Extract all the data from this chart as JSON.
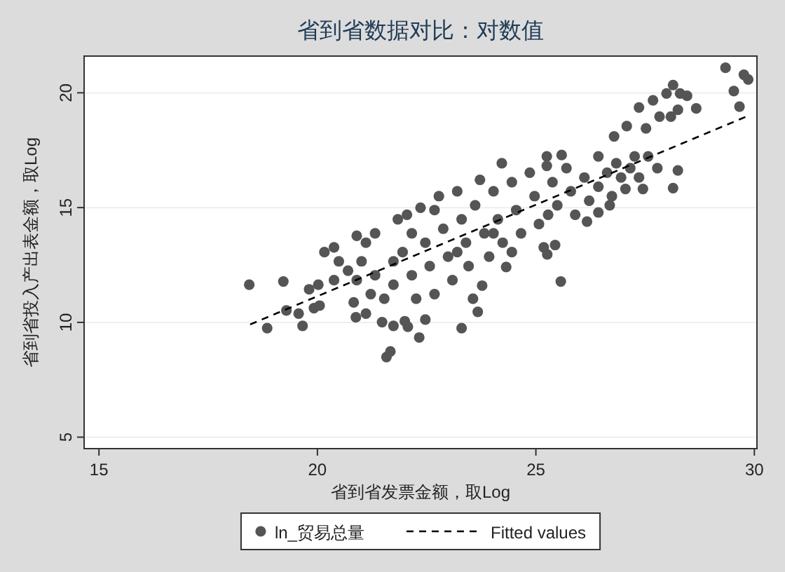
{
  "chart_data": {
    "type": "scatter",
    "title": "省到省数据对比：对数值",
    "xlabel": "省到省发票金额，取Log",
    "ylabel": "省到省投入产出表金额，取Log",
    "xlim": [
      14.66,
      30.06
    ],
    "ylim": [
      4.5,
      21.6
    ],
    "xticks": [
      15,
      20,
      25,
      30
    ],
    "yticks": [
      5,
      10,
      15,
      20
    ],
    "grid": "y",
    "legend": "bottom",
    "series": [
      {
        "name": "ln_贸易总量",
        "type": "scatter",
        "marker": "circle",
        "color": "#555555",
        "x": [
          18.44,
          19.22,
          18.85,
          19.66,
          19.29,
          19.57,
          19.92,
          20.05,
          19.81,
          20.02,
          20.16,
          20.38,
          20.83,
          20.88,
          21.11,
          21.58,
          21.67,
          21.48,
          21.74,
          22.0,
          22.07,
          22.33,
          22.47,
          23.3,
          23.67,
          23.56,
          23.77,
          24.32,
          25.57,
          24.22,
          25.25,
          25.25,
          25.59,
          26.43,
          26.79,
          27.08,
          27.26,
          27.36,
          27.52,
          27.57,
          27.68,
          27.83,
          27.99,
          28.14,
          28.3,
          28.46,
          28.25,
          28.09,
          28.67,
          27.78,
          28.25,
          28.14,
          27.45,
          27.05,
          29.34,
          29.76,
          29.86,
          29.53,
          29.66,
          26.69,
          26.17,
          26.43,
          25.44,
          25.26,
          20.49,
          20.7,
          20.9,
          21.11,
          21.32,
          21.01,
          21.32,
          21.22,
          21.53,
          21.74,
          21.84,
          21.95,
          22.05,
          22.16,
          22.26,
          22.36,
          22.47,
          22.57,
          22.68,
          22.78,
          22.88,
          22.99,
          23.09,
          23.2,
          23.3,
          23.4,
          23.46,
          23.72,
          23.61,
          23.82,
          23.93,
          24.03,
          24.13,
          24.24,
          24.45,
          24.55,
          24.66,
          24.86,
          24.97,
          25.07,
          25.18,
          25.38,
          25.49,
          25.7,
          25.8,
          25.9,
          26.11,
          26.22,
          26.43,
          26.63,
          26.74,
          26.84,
          26.95,
          27.16,
          27.36,
          21.74,
          20.9,
          20.38,
          22.16,
          22.68,
          23.2,
          24.03,
          25.28,
          24.45
        ],
        "values": [
          11.64,
          11.78,
          9.75,
          9.85,
          10.52,
          10.38,
          10.62,
          10.73,
          11.44,
          11.64,
          13.06,
          13.27,
          10.87,
          10.22,
          10.38,
          8.49,
          8.73,
          10.01,
          9.85,
          10.05,
          9.81,
          9.34,
          10.12,
          9.75,
          10.46,
          11.03,
          11.6,
          12.41,
          11.78,
          16.93,
          17.23,
          16.82,
          17.29,
          17.23,
          18.1,
          18.55,
          17.23,
          19.36,
          18.45,
          17.23,
          19.67,
          18.96,
          19.97,
          20.34,
          19.97,
          19.87,
          19.26,
          18.96,
          19.32,
          16.72,
          16.62,
          15.85,
          15.81,
          15.81,
          21.09,
          20.79,
          20.58,
          20.08,
          19.4,
          15.1,
          14.39,
          14.79,
          13.37,
          12.96,
          12.66,
          12.25,
          13.77,
          13.47,
          13.88,
          12.66,
          12.05,
          11.23,
          11.03,
          11.64,
          14.49,
          13.06,
          14.69,
          12.05,
          11.03,
          14.99,
          13.47,
          12.45,
          11.23,
          15.5,
          14.08,
          12.86,
          11.84,
          15.71,
          14.49,
          13.47,
          12.45,
          16.21,
          15.1,
          13.88,
          12.86,
          15.71,
          14.49,
          13.47,
          16.11,
          14.89,
          13.88,
          16.52,
          15.5,
          14.28,
          13.27,
          16.11,
          15.1,
          16.72,
          15.71,
          14.69,
          16.31,
          15.3,
          15.91,
          16.52,
          15.5,
          16.93,
          16.31,
          16.72,
          16.31,
          12.66,
          11.84,
          11.84,
          13.88,
          14.89,
          13.06,
          13.88,
          14.69,
          13.06
        ]
      },
      {
        "name": "Fitted values",
        "type": "line",
        "line_style": "dashed",
        "color": "#000000",
        "x": [
          18.46,
          29.81
        ],
        "values": [
          9.91,
          18.96
        ]
      }
    ]
  }
}
